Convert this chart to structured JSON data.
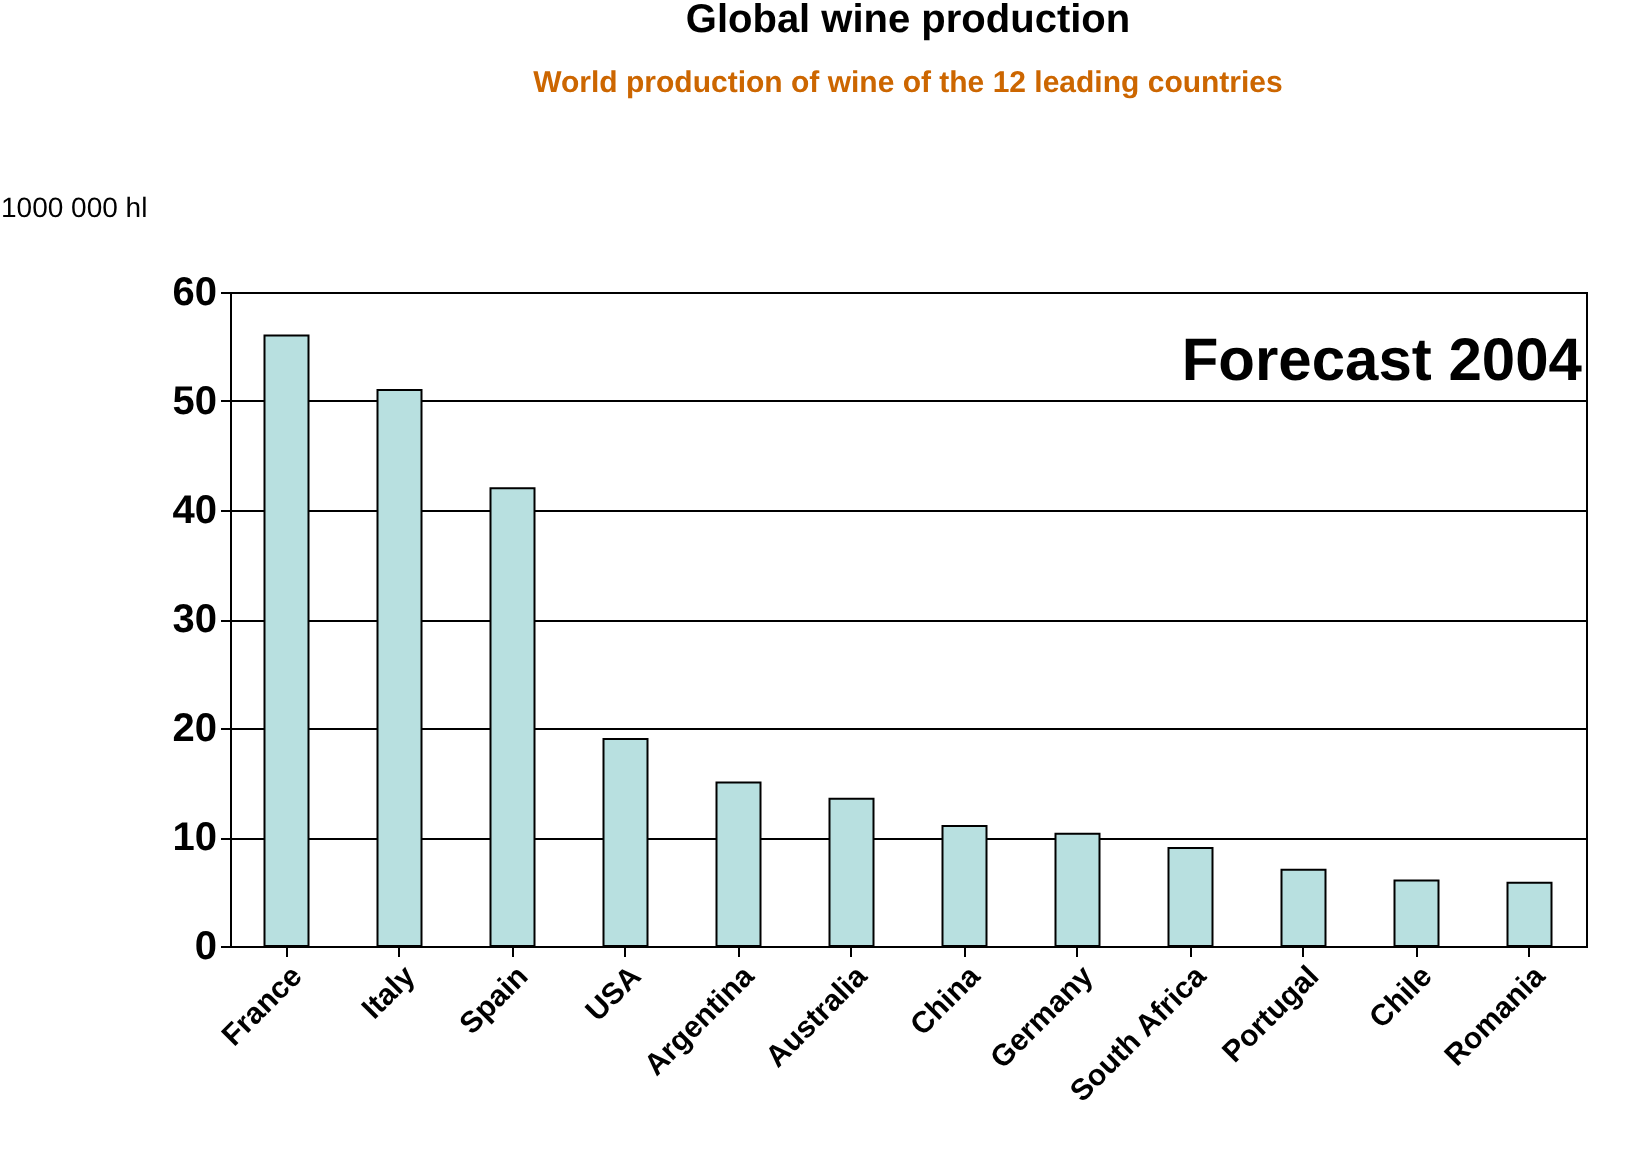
{
  "chart_data": {
    "type": "bar",
    "title": "Global wine production",
    "subtitle": "World production of wine            of the 12 leading countries",
    "ylabel": "1000 000 hl",
    "categories": [
      "France",
      "Italy",
      "Spain",
      "USA",
      "Argentina",
      "Australia",
      "China",
      "Germany",
      "South Africa",
      "Portugal",
      "Chile",
      "Romania"
    ],
    "values": [
      56,
      51,
      42,
      19,
      15,
      13.5,
      11,
      10.3,
      9,
      7,
      6,
      5.8
    ],
    "color": "#b8e0e0",
    "ylim": [
      0,
      60
    ],
    "yticks": [
      0,
      10,
      20,
      30,
      40,
      50,
      60
    ],
    "grid": "y",
    "annotations": [
      "Forecast      2004"
    ]
  }
}
